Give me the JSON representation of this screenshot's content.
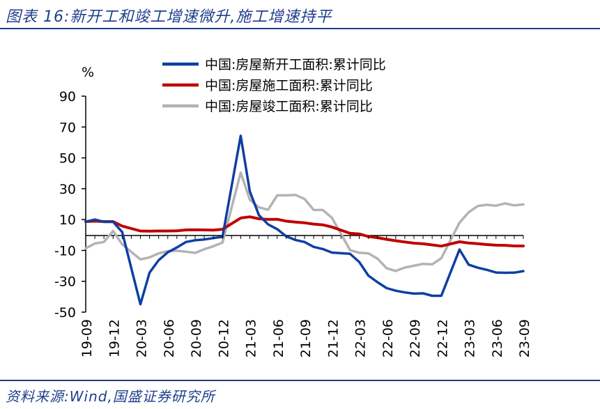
{
  "figure": {
    "title": "图表 16:新开工和竣工增速微升,施工增速持平",
    "source": "资料来源:Wind,国盛证券研究所"
  },
  "chart_data": {
    "type": "line",
    "ylabel": "%",
    "ylim": [
      -50,
      90
    ],
    "yticks": [
      90,
      70,
      50,
      30,
      10,
      -10,
      -30,
      -50
    ],
    "ytick_labels": [
      "90",
      "70",
      "50",
      "30",
      "10",
      "-10",
      "-30",
      "-50"
    ],
    "xtick_labels": [
      "19-09",
      "19-12",
      "20-03",
      "20-06",
      "20-09",
      "20-12",
      "21-03",
      "21-06",
      "21-09",
      "21-12",
      "22-03",
      "22-06",
      "22-09",
      "22-12",
      "23-03",
      "23-06",
      "23-09"
    ],
    "x": [
      "19-09",
      "19-10",
      "19-11",
      "19-12",
      "20-01",
      "20-02",
      "20-03",
      "20-04",
      "20-05",
      "20-06",
      "20-07",
      "20-08",
      "20-09",
      "20-10",
      "20-11",
      "20-12",
      "21-01",
      "21-02",
      "21-03",
      "21-04",
      "21-05",
      "21-06",
      "21-07",
      "21-08",
      "21-09",
      "21-10",
      "21-11",
      "21-12",
      "22-01",
      "22-02",
      "22-03",
      "22-04",
      "22-05",
      "22-06",
      "22-07",
      "22-08",
      "22-09",
      "22-10",
      "22-11",
      "22-12",
      "23-01",
      "23-02",
      "23-03",
      "23-04",
      "23-05",
      "23-06",
      "23-07",
      "23-08",
      "23-09"
    ],
    "legend_position": "top",
    "series": [
      {
        "name": "中国:房屋新开工面积:累计同比",
        "color": "#0e3fa3",
        "values": [
          8.6,
          10,
          8.5,
          8.5,
          2,
          null,
          -44.9,
          -24.4,
          -16.3,
          -11.2,
          -8.1,
          -4.5,
          -3.4,
          -2.9,
          -2.0,
          -1.2,
          null,
          64.3,
          28.2,
          12.8,
          6.9,
          3.8,
          -0.9,
          -3.2,
          -4.5,
          -7.7,
          -9.1,
          -11.4,
          null,
          -12.2,
          -17.5,
          -26.3,
          -30.6,
          -34.4,
          -36.1,
          -37.2,
          -38.0,
          -37.8,
          -39.4,
          -39.4,
          null,
          -9.4,
          -19.2,
          -21.2,
          -22.6,
          -24.3,
          -24.5,
          -24.4,
          -23.4
        ]
      },
      {
        "name": "中国:房屋施工面积:累计同比",
        "color": "#c00000",
        "values": [
          8.7,
          9,
          8.7,
          8.7,
          5.8,
          null,
          2.6,
          2.5,
          2.6,
          2.6,
          2.7,
          3.3,
          3.4,
          3.3,
          3.2,
          3.7,
          null,
          11.0,
          11.8,
          10.5,
          10.1,
          10.2,
          9.0,
          8.4,
          7.9,
          7.1,
          6.6,
          5.2,
          null,
          1.1,
          0.7,
          -1.0,
          -1.7,
          -2.8,
          -3.7,
          -4.5,
          -5.3,
          -5.7,
          -6.4,
          -7.2,
          null,
          -4.4,
          -5.2,
          -5.6,
          -6.2,
          -6.6,
          -6.7,
          -7.1,
          -7.1
        ]
      },
      {
        "name": "中国:房屋竣工面积:累计同比",
        "color": "#b3b3b3",
        "values": [
          -8.6,
          -5.5,
          -4.5,
          2.6,
          -6,
          null,
          -15.8,
          -14.5,
          -11.9,
          -10.5,
          -10.2,
          -10.8,
          -11.6,
          -9.2,
          -7.3,
          -4.9,
          null,
          40.4,
          22.9,
          17.9,
          16.4,
          25.7,
          25.7,
          26.0,
          23.4,
          16.3,
          16.2,
          11.2,
          null,
          -9.8,
          -11.5,
          -11.9,
          -15.3,
          -21.5,
          -23.3,
          -21.1,
          -19.9,
          -18.7,
          -19.0,
          -15.0,
          null,
          8.0,
          14.7,
          18.8,
          19.6,
          19.0,
          20.5,
          19.2,
          19.8
        ]
      }
    ]
  }
}
